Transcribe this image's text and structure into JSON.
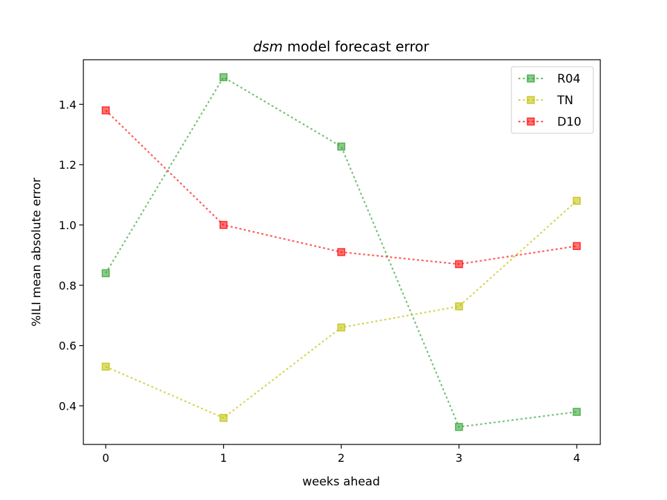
{
  "chart_data": {
    "type": "line",
    "title_emphasis": "dsm",
    "title_rest": " model forecast error",
    "xlabel": "weeks ahead",
    "ylabel": "%ILI mean absolute error",
    "x": [
      0,
      1,
      2,
      3,
      4
    ],
    "xticks": [
      "0",
      "1",
      "2",
      "3",
      "4"
    ],
    "yticks": [
      "0.4",
      "0.6",
      "0.8",
      "1.0",
      "1.2",
      "1.4"
    ],
    "xlim": [
      -0.19,
      4.2
    ],
    "ylim": [
      0.272,
      1.548
    ],
    "grid": false,
    "legend_position": "top-right",
    "series": [
      {
        "name": "R04",
        "color": "#2ca02c",
        "values": [
          0.84,
          1.49,
          1.26,
          0.33,
          0.38
        ]
      },
      {
        "name": "TN",
        "color": "#bfbf00",
        "values": [
          0.53,
          0.36,
          0.66,
          0.73,
          1.08
        ]
      },
      {
        "name": "D10",
        "color": "#ff0000",
        "values": [
          1.38,
          1.0,
          0.91,
          0.87,
          0.93
        ]
      }
    ]
  }
}
